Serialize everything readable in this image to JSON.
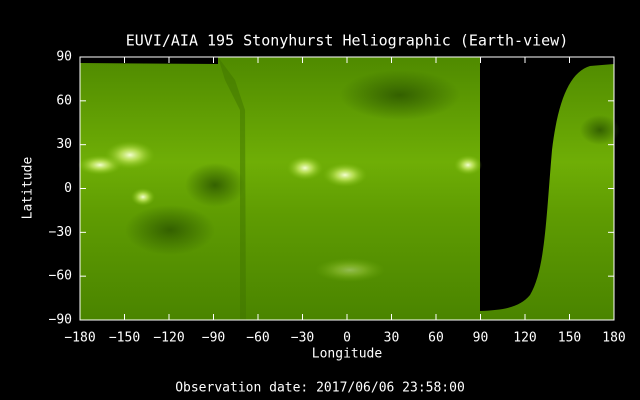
{
  "chart_data": {
    "type": "image",
    "title": "EUVI/AIA 195 Stonyhurst Heliographic (Earth-view)",
    "x_label": "Longitude",
    "y_label": "Latitude",
    "footer": "Observation date: 2017/06/06 23:58:00",
    "xlim": [
      -180,
      180
    ],
    "ylim": [
      -90,
      90
    ],
    "xticks": [
      {
        "value": -180,
        "label": "−180"
      },
      {
        "value": -150,
        "label": "−150"
      },
      {
        "value": -120,
        "label": "−120"
      },
      {
        "value": -90,
        "label": "−90"
      },
      {
        "value": -60,
        "label": "−60"
      },
      {
        "value": -30,
        "label": "−30"
      },
      0,
      30,
      60,
      90,
      120,
      150,
      180
    ],
    "yticks": [
      {
        "value": -90,
        "label": "−90"
      },
      {
        "value": -60,
        "label": "−60"
      },
      {
        "value": -30,
        "label": "−30"
      },
      0,
      30,
      60,
      90
    ]
  }
}
